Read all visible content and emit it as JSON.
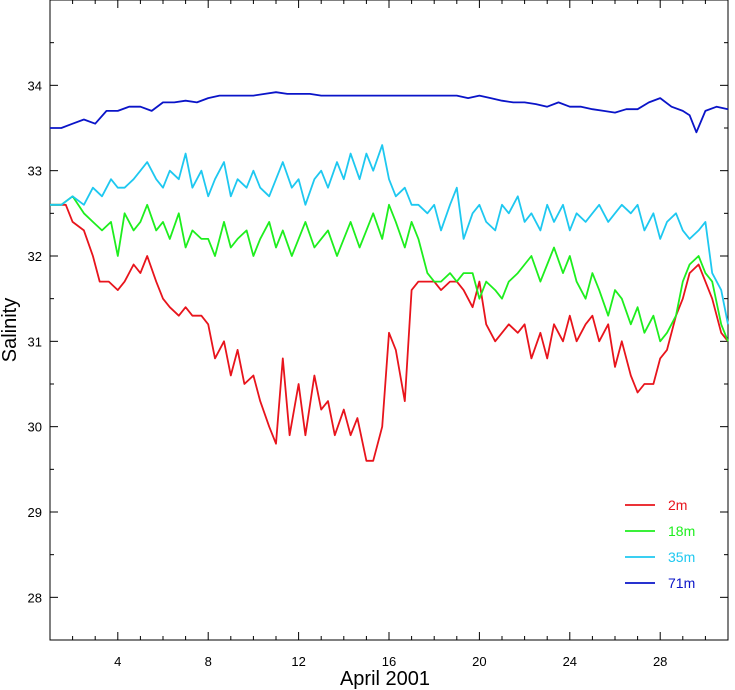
{
  "chart_data": {
    "type": "line",
    "title": "",
    "xlabel": "April 2001",
    "ylabel": "Salinity",
    "xlim": [
      1,
      31
    ],
    "ylim": [
      27.5,
      35.0
    ],
    "x_ticks": [
      4,
      8,
      12,
      16,
      20,
      24,
      28
    ],
    "y_ticks": [
      28,
      29,
      30,
      31,
      32,
      33,
      34
    ],
    "grid": false,
    "legend_position": "bottom-right",
    "series": [
      {
        "name": "2m",
        "color": "#e8141c",
        "x": [
          1.0,
          1.7,
          2.0,
          2.5,
          2.9,
          3.2,
          3.6,
          4.0,
          4.3,
          4.7,
          5.0,
          5.3,
          5.7,
          6.0,
          6.3,
          6.7,
          7.0,
          7.3,
          7.7,
          8.0,
          8.3,
          8.7,
          9.0,
          9.3,
          9.6,
          10.0,
          10.3,
          10.7,
          11.0,
          11.3,
          11.6,
          12.0,
          12.3,
          12.7,
          13.0,
          13.3,
          13.6,
          14.0,
          14.3,
          14.6,
          15.0,
          15.3,
          15.7,
          16.0,
          16.3,
          16.7,
          17.0,
          17.3,
          17.7,
          18.0,
          18.3,
          18.7,
          19.0,
          19.3,
          19.7,
          20.0,
          20.3,
          20.7,
          21.0,
          21.3,
          21.7,
          22.0,
          22.3,
          22.7,
          23.0,
          23.3,
          23.7,
          24.0,
          24.3,
          24.7,
          25.0,
          25.3,
          25.7,
          26.0,
          26.3,
          26.7,
          27.0,
          27.3,
          27.7,
          28.0,
          28.3,
          28.7,
          29.0,
          29.3,
          29.7,
          30.0,
          30.3,
          30.7,
          31.0
        ],
        "values": [
          32.6,
          32.6,
          32.4,
          32.3,
          32.0,
          31.7,
          31.7,
          31.6,
          31.7,
          31.9,
          31.8,
          32.0,
          31.7,
          31.5,
          31.4,
          31.3,
          31.4,
          31.3,
          31.3,
          31.2,
          30.8,
          31.0,
          30.6,
          30.9,
          30.5,
          30.6,
          30.3,
          30.0,
          29.8,
          30.8,
          29.9,
          30.5,
          29.9,
          30.6,
          30.2,
          30.3,
          29.9,
          30.2,
          29.9,
          30.1,
          29.6,
          29.6,
          30.0,
          31.1,
          30.9,
          30.3,
          31.6,
          31.7,
          31.7,
          31.7,
          31.6,
          31.7,
          31.7,
          31.6,
          31.4,
          31.7,
          31.2,
          31.0,
          31.1,
          31.2,
          31.1,
          31.2,
          30.8,
          31.1,
          30.8,
          31.2,
          31.0,
          31.3,
          31.0,
          31.2,
          31.3,
          31.0,
          31.2,
          30.7,
          31.0,
          30.6,
          30.4,
          30.5,
          30.5,
          30.8,
          30.9,
          31.3,
          31.5,
          31.8,
          31.9,
          31.7,
          31.5,
          31.1,
          31.0
        ]
      },
      {
        "name": "18m",
        "color": "#1eee1e",
        "x": [
          1.0,
          1.5,
          2.0,
          2.5,
          2.9,
          3.3,
          3.7,
          4.0,
          4.3,
          4.7,
          5.0,
          5.3,
          5.7,
          6.0,
          6.3,
          6.7,
          7.0,
          7.3,
          7.7,
          8.0,
          8.3,
          8.7,
          9.0,
          9.3,
          9.7,
          10.0,
          10.3,
          10.7,
          11.0,
          11.3,
          11.7,
          12.0,
          12.3,
          12.7,
          13.0,
          13.3,
          13.7,
          14.0,
          14.3,
          14.7,
          15.0,
          15.3,
          15.7,
          16.0,
          16.3,
          16.7,
          17.0,
          17.3,
          17.7,
          18.0,
          18.3,
          18.7,
          19.0,
          19.3,
          19.7,
          20.0,
          20.3,
          20.7,
          21.0,
          21.3,
          21.7,
          22.0,
          22.3,
          22.7,
          23.0,
          23.3,
          23.7,
          24.0,
          24.3,
          24.7,
          25.0,
          25.3,
          25.7,
          26.0,
          26.3,
          26.7,
          27.0,
          27.3,
          27.7,
          28.0,
          28.3,
          28.7,
          29.0,
          29.3,
          29.7,
          30.0,
          30.3,
          30.7,
          31.0
        ],
        "values": [
          32.6,
          32.6,
          32.7,
          32.5,
          32.4,
          32.3,
          32.4,
          32.0,
          32.5,
          32.3,
          32.4,
          32.6,
          32.3,
          32.4,
          32.2,
          32.5,
          32.1,
          32.3,
          32.2,
          32.2,
          32.0,
          32.4,
          32.1,
          32.2,
          32.3,
          32.0,
          32.2,
          32.4,
          32.1,
          32.3,
          32.0,
          32.2,
          32.4,
          32.1,
          32.2,
          32.3,
          32.0,
          32.2,
          32.4,
          32.1,
          32.3,
          32.5,
          32.2,
          32.6,
          32.4,
          32.1,
          32.4,
          32.2,
          31.8,
          31.7,
          31.7,
          31.8,
          31.7,
          31.8,
          31.8,
          31.5,
          31.7,
          31.6,
          31.5,
          31.7,
          31.8,
          31.9,
          32.0,
          31.7,
          31.9,
          32.1,
          31.8,
          32.0,
          31.7,
          31.5,
          31.8,
          31.6,
          31.3,
          31.6,
          31.5,
          31.2,
          31.4,
          31.1,
          31.3,
          31.0,
          31.1,
          31.3,
          31.7,
          31.9,
          32.0,
          31.8,
          31.7,
          31.2,
          31.0
        ]
      },
      {
        "name": "35m",
        "color": "#1ec8f0",
        "x": [
          1.0,
          1.5,
          2.0,
          2.5,
          2.9,
          3.3,
          3.7,
          4.0,
          4.3,
          4.7,
          5.0,
          5.3,
          5.7,
          6.0,
          6.3,
          6.7,
          7.0,
          7.3,
          7.7,
          8.0,
          8.3,
          8.7,
          9.0,
          9.3,
          9.7,
          10.0,
          10.3,
          10.7,
          11.0,
          11.3,
          11.7,
          12.0,
          12.3,
          12.7,
          13.0,
          13.3,
          13.7,
          14.0,
          14.3,
          14.7,
          15.0,
          15.3,
          15.7,
          16.0,
          16.3,
          16.7,
          17.0,
          17.3,
          17.7,
          18.0,
          18.3,
          18.7,
          19.0,
          19.3,
          19.7,
          20.0,
          20.3,
          20.7,
          21.0,
          21.3,
          21.7,
          22.0,
          22.3,
          22.7,
          23.0,
          23.3,
          23.7,
          24.0,
          24.3,
          24.7,
          25.0,
          25.3,
          25.7,
          26.0,
          26.3,
          26.7,
          27.0,
          27.3,
          27.7,
          28.0,
          28.3,
          28.7,
          29.0,
          29.3,
          29.7,
          30.0,
          30.3,
          30.7,
          31.0
        ],
        "values": [
          32.6,
          32.6,
          32.7,
          32.6,
          32.8,
          32.7,
          32.9,
          32.8,
          32.8,
          32.9,
          33.0,
          33.1,
          32.9,
          32.8,
          33.0,
          32.9,
          33.2,
          32.8,
          33.0,
          32.7,
          32.9,
          33.1,
          32.7,
          32.9,
          32.8,
          33.0,
          32.8,
          32.7,
          32.9,
          33.1,
          32.8,
          32.9,
          32.6,
          32.9,
          33.0,
          32.8,
          33.1,
          32.9,
          33.2,
          32.9,
          33.2,
          33.0,
          33.3,
          32.9,
          32.7,
          32.8,
          32.6,
          32.6,
          32.5,
          32.6,
          32.3,
          32.6,
          32.8,
          32.2,
          32.5,
          32.6,
          32.4,
          32.3,
          32.6,
          32.5,
          32.7,
          32.4,
          32.5,
          32.3,
          32.6,
          32.4,
          32.6,
          32.3,
          32.5,
          32.4,
          32.5,
          32.6,
          32.4,
          32.5,
          32.6,
          32.5,
          32.6,
          32.3,
          32.5,
          32.2,
          32.4,
          32.5,
          32.3,
          32.2,
          32.3,
          32.4,
          31.8,
          31.6,
          31.2
        ]
      },
      {
        "name": "71m",
        "color": "#0a14c8",
        "x": [
          1.0,
          1.5,
          2.0,
          2.5,
          3.0,
          3.5,
          4.0,
          4.5,
          5.0,
          5.5,
          6.0,
          6.5,
          7.0,
          7.5,
          8.0,
          8.5,
          9.0,
          9.5,
          10.0,
          10.5,
          11.0,
          11.5,
          12.0,
          12.5,
          13.0,
          13.5,
          14.0,
          14.5,
          15.0,
          15.5,
          16.0,
          16.5,
          17.0,
          17.5,
          18.0,
          18.5,
          19.0,
          19.5,
          20.0,
          20.5,
          21.0,
          21.5,
          22.0,
          22.5,
          23.0,
          23.5,
          24.0,
          24.5,
          25.0,
          25.5,
          26.0,
          26.5,
          27.0,
          27.5,
          28.0,
          28.5,
          29.0,
          29.3,
          29.6,
          30.0,
          30.5,
          31.0
        ],
        "values": [
          33.5,
          33.5,
          33.55,
          33.6,
          33.55,
          33.7,
          33.7,
          33.75,
          33.75,
          33.7,
          33.8,
          33.8,
          33.82,
          33.8,
          33.85,
          33.88,
          33.88,
          33.88,
          33.88,
          33.9,
          33.92,
          33.9,
          33.9,
          33.9,
          33.88,
          33.88,
          33.88,
          33.88,
          33.88,
          33.88,
          33.88,
          33.88,
          33.88,
          33.88,
          33.88,
          33.88,
          33.88,
          33.85,
          33.88,
          33.85,
          33.82,
          33.8,
          33.8,
          33.78,
          33.75,
          33.8,
          33.75,
          33.75,
          33.72,
          33.7,
          33.68,
          33.72,
          33.72,
          33.8,
          33.85,
          33.75,
          33.7,
          33.65,
          33.45,
          33.7,
          33.75,
          33.72
        ]
      }
    ]
  }
}
